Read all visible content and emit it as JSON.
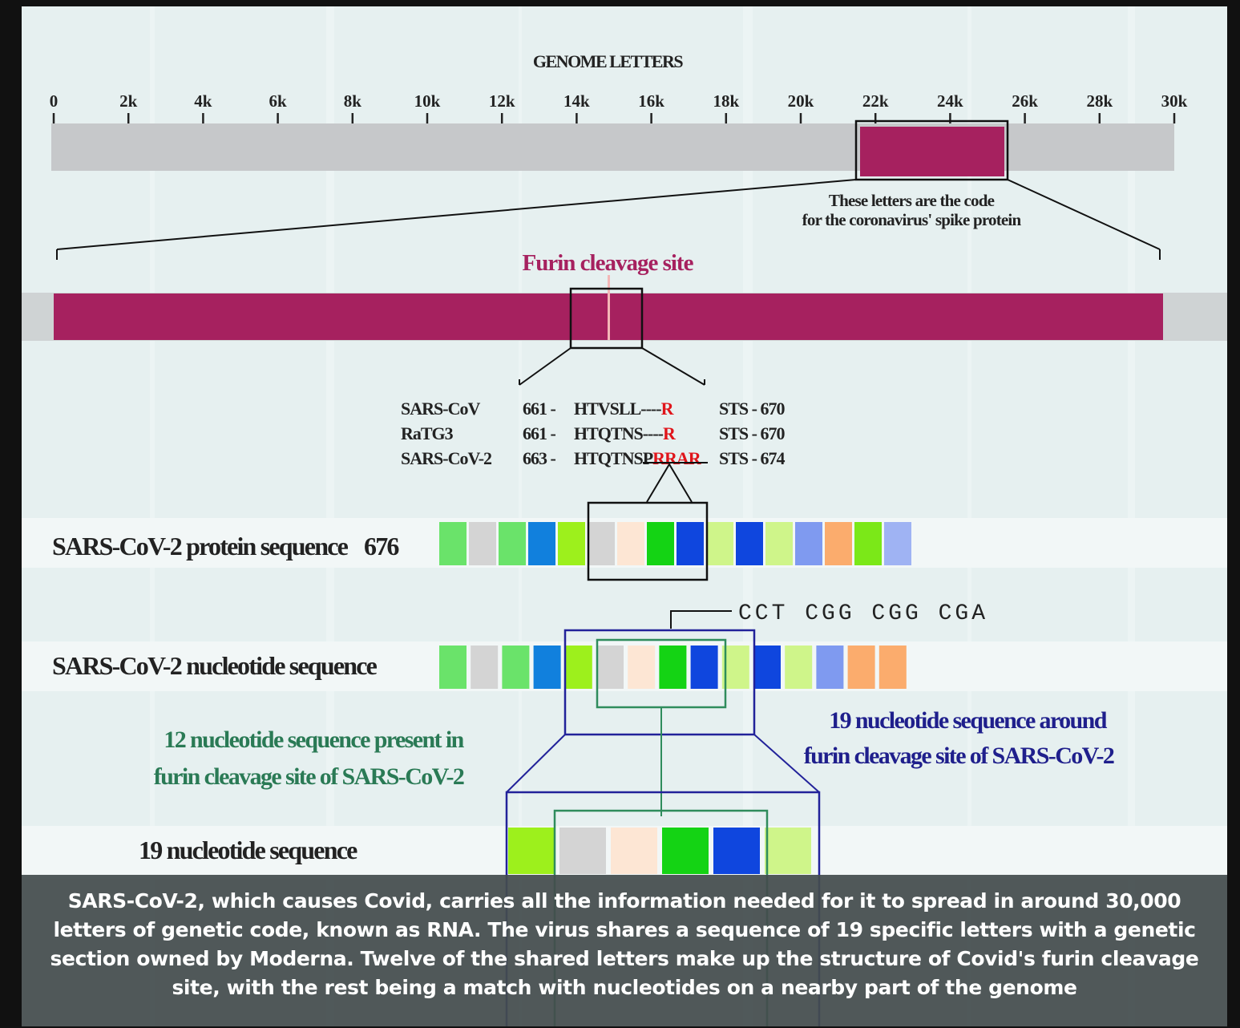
{
  "colors": {
    "magenta": "#a6215f",
    "grey_bar": "#c6c8ca",
    "red": "#e0151b",
    "green_text": "#2a7a55",
    "blue_text": "#1f1f8c",
    "blue_box": "#22229a",
    "green_box": "#2f8c5c"
  },
  "genome": {
    "title": "GENOME LETTERS",
    "ticks": [
      "0",
      "2k",
      "4k",
      "6k",
      "8k",
      "10k",
      "12k",
      "14k",
      "16k",
      "18k",
      "20k",
      "22k",
      "24k",
      "26k",
      "28k",
      "30k"
    ],
    "spike_note_line1": "These letters are the code",
    "spike_note_line2": "for the coronavirus' spike protein"
  },
  "furin_label": "Furin cleavage site",
  "alignment": [
    {
      "name": "SARS-CoV",
      "start": "661 -",
      "seq_black": "HTVSLL----",
      "seq_red": "R",
      "end": "STS - 670"
    },
    {
      "name": "RaTG3",
      "start": "661 -",
      "seq_black": "HTQTNS----",
      "seq_red": "R",
      "end": "STS - 670"
    },
    {
      "name": "SARS-CoV-2",
      "start": "663 -",
      "seq_black": "HTQTNSP",
      "seq_red": "RRAR",
      "end": "STS - 674"
    }
  ],
  "protein": {
    "label": "SARS-CoV-2 protein sequence",
    "number": "676",
    "blocks": [
      "#6ae36a",
      "#d4d4d4",
      "#6ae36a",
      "#1180dd",
      "#9df01c",
      "#d4d4d4",
      "#fde6d4",
      "#14d314",
      "#0f46de",
      "#cff58a",
      "#0f46de",
      "#cff58a",
      "#7f9af0",
      "#fbac6d",
      "#7be818",
      "#9fb3f3"
    ]
  },
  "nucleotide": {
    "label": "SARS-CoV-2 nucleotide sequence",
    "codons": "CCT CGG CGG CGA",
    "blocks": [
      "#6ae36a",
      "#d4d4d4",
      "#6ae36a",
      "#1180dd",
      "#9df01c",
      "#d4d4d4",
      "#fde6d4",
      "#14d314",
      "#0f46de",
      "#cff58a",
      "#0f46de",
      "#cff58a",
      "#7f9af0",
      "#fbac6d",
      "#fbac6d"
    ]
  },
  "note_12_line1": "12 nucleotide sequence present in",
  "note_12_line2": "furin cleavage site of SARS-CoV-2",
  "note_19_line1": "19 nucleotide sequence around",
  "note_19_line2": "furin cleavage site of SARS-CoV-2",
  "seq19": {
    "label": "19 nucleotide sequence",
    "blocks": [
      "#9df01c",
      "#d4d4d4",
      "#fde6d4",
      "#14d314",
      "#0f46de",
      "#cff58a"
    ]
  },
  "caption": "SARS-CoV-2, which causes Covid, carries all the information needed for it to spread in around 30,000 letters of genetic code, known as RNA. The virus shares a sequence of 19 specific letters with a genetic section owned by Moderna. Twelve of the shared letters make up the structure of Covid's furin cleavage site, with the rest being a match with nucleotides on a nearby part of the genome"
}
